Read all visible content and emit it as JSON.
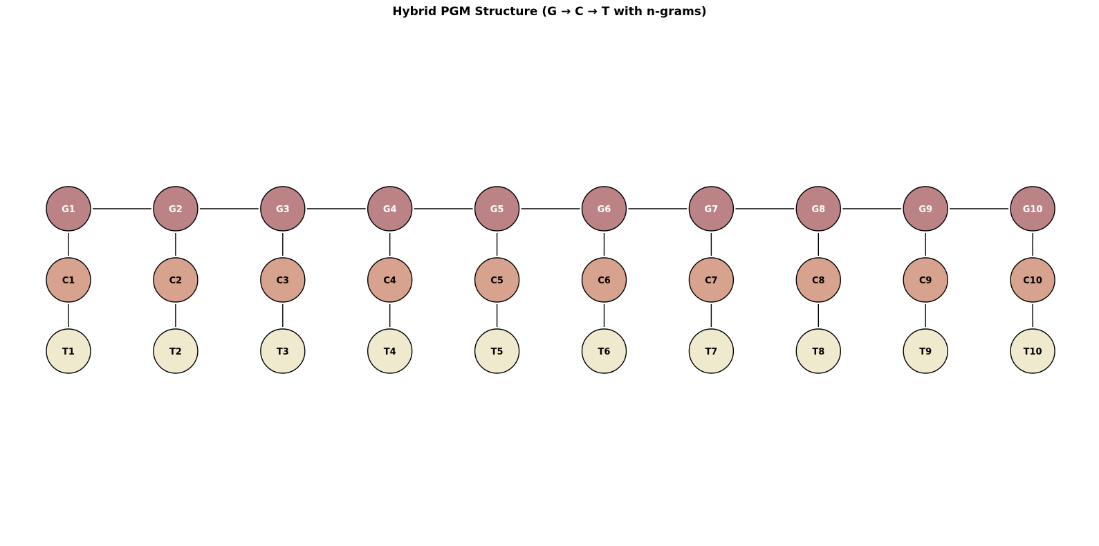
{
  "title": "Hybrid PGM Structure (G → C → T with n-grams)",
  "colors": {
    "g_fill": "#bb8386",
    "c_fill": "#d7a28e",
    "t_fill": "#efeacd",
    "g_text": "#ffffff",
    "c_text": "#000000",
    "t_text": "#000000",
    "edge": "#000000"
  },
  "rows": {
    "g": [
      "G1",
      "G2",
      "G3",
      "G4",
      "G5",
      "G6",
      "G7",
      "G8",
      "G9",
      "G10"
    ],
    "c": [
      "C1",
      "C2",
      "C3",
      "C4",
      "C5",
      "C6",
      "C7",
      "C8",
      "C9",
      "C10"
    ],
    "t": [
      "T1",
      "T2",
      "T3",
      "T4",
      "T5",
      "T6",
      "T7",
      "T8",
      "T9",
      "T10"
    ]
  },
  "edges": {
    "g_chain": true,
    "g_to_c": true,
    "c_to_t": true
  }
}
